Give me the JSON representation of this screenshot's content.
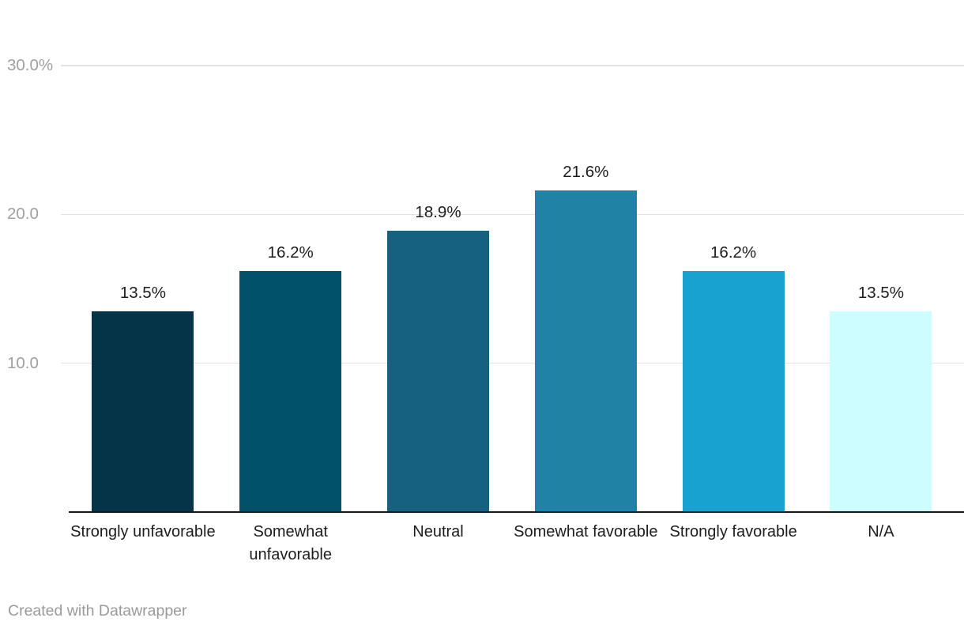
{
  "chart_data": {
    "type": "bar",
    "title": "",
    "xlabel": "",
    "ylabel": "",
    "categories": [
      "Strongly unfavorable",
      "Somewhat unfavorable",
      "Neutral",
      "Somewhat favorable",
      "Strongly favorable",
      "N/A"
    ],
    "values": [
      13.5,
      16.2,
      18.9,
      21.6,
      16.2,
      13.5
    ],
    "value_labels": [
      "13.5%",
      "16.2%",
      "18.9%",
      "21.6%",
      "16.2%",
      "13.5%"
    ],
    "bar_colors": [
      "#053449",
      "#02516b",
      "#166180",
      "#2082a4",
      "#17a2d0",
      "#cdfdfe"
    ],
    "ylim": [
      0,
      31
    ],
    "yticks": [
      {
        "value": 10,
        "label": "10.0"
      },
      {
        "value": 20,
        "label": "20.0"
      },
      {
        "value": 30,
        "label": "30.0%"
      }
    ],
    "grid": true,
    "legend": false,
    "colors": {
      "gridline": "#e2e2e2",
      "axis_line": "#17181a",
      "tick_label": "#a0a0a0",
      "value_label": "#1d1d1d",
      "category_label": "#1d1d1d"
    }
  },
  "footer": {
    "attribution": "Created with Datawrapper"
  }
}
